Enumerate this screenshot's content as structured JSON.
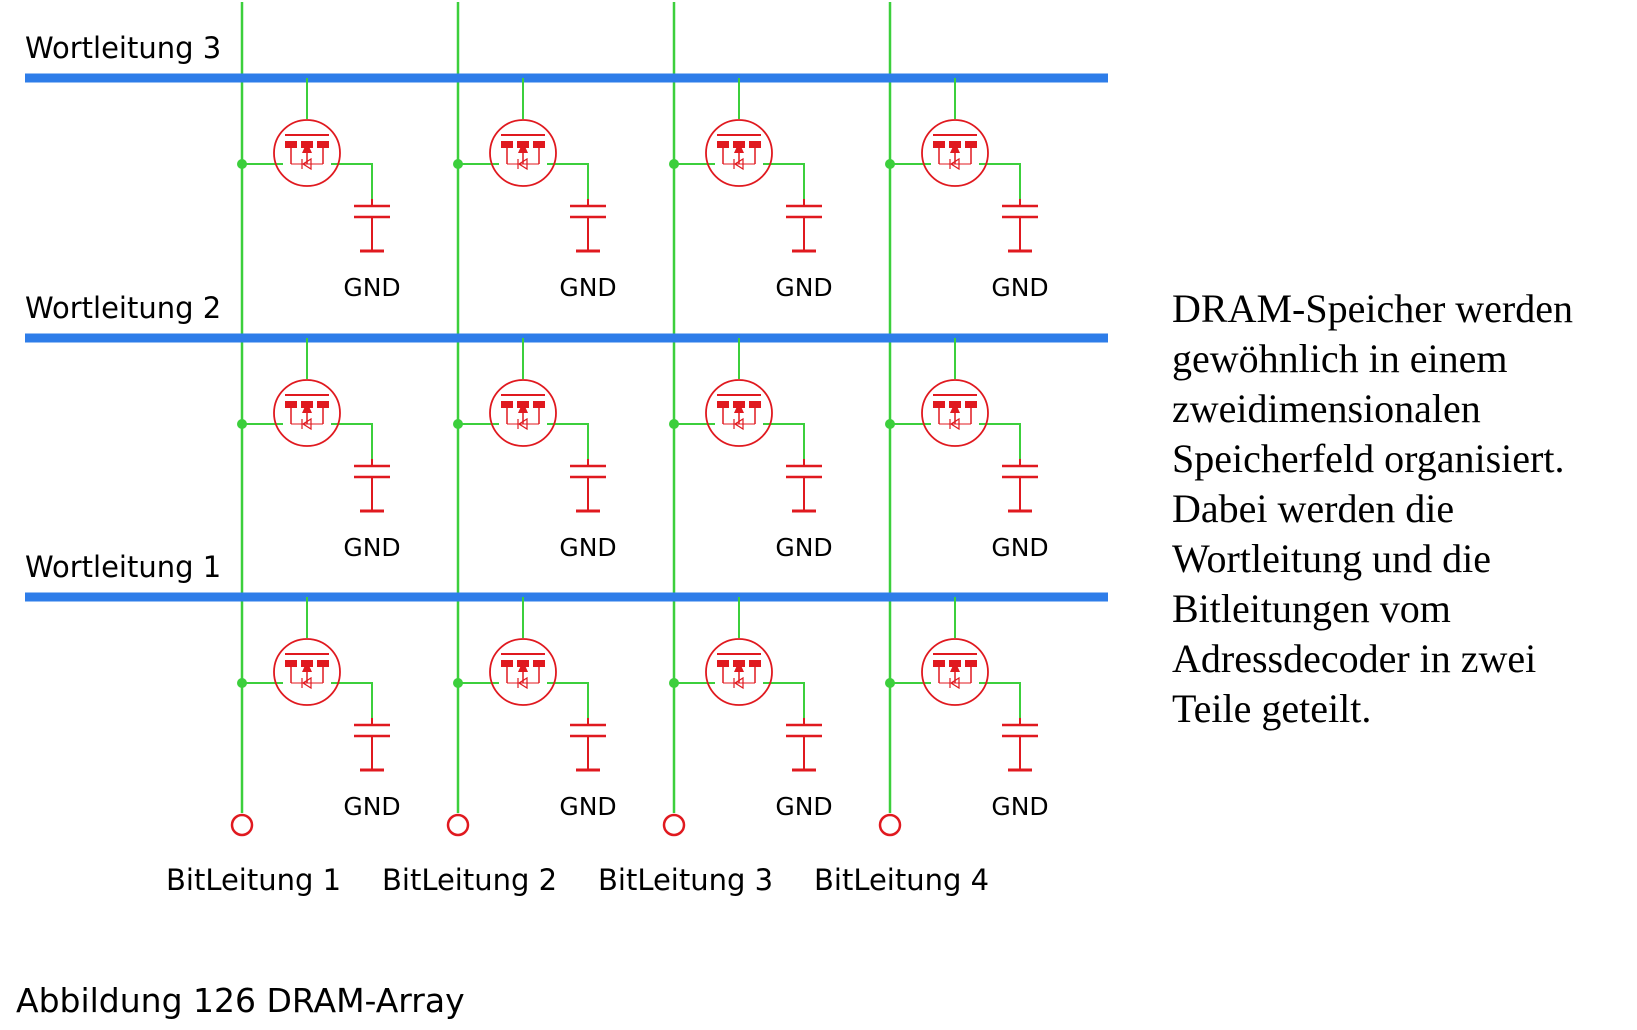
{
  "word_lines": [
    {
      "label": "Wortleitung 3"
    },
    {
      "label": "Wortleitung 2"
    },
    {
      "label": "Wortleitung 1"
    }
  ],
  "bit_lines": [
    {
      "label": "BitLeitung 1"
    },
    {
      "label": "BitLeitung 2"
    },
    {
      "label": "BitLeitung 3"
    },
    {
      "label": "BitLeitung 4"
    }
  ],
  "ground_label": "GND",
  "caption": "Abbildung 126 DRAM-Array",
  "description_lines": [
    "DRAM-Speicher werden",
    "gewöhnlich in einem",
    "zweidimensionalen",
    "Speicherfeld organisiert.",
    "Dabei werden die",
    "Wortleitung und die",
    "Bitleitungen vom",
    "Adressdecoder in zwei",
    "Teile geteilt."
  ],
  "colors": {
    "word_line": "#2e7de9",
    "bit_line": "#3ccf3c",
    "component": "#e0191f",
    "text": "#000000"
  }
}
